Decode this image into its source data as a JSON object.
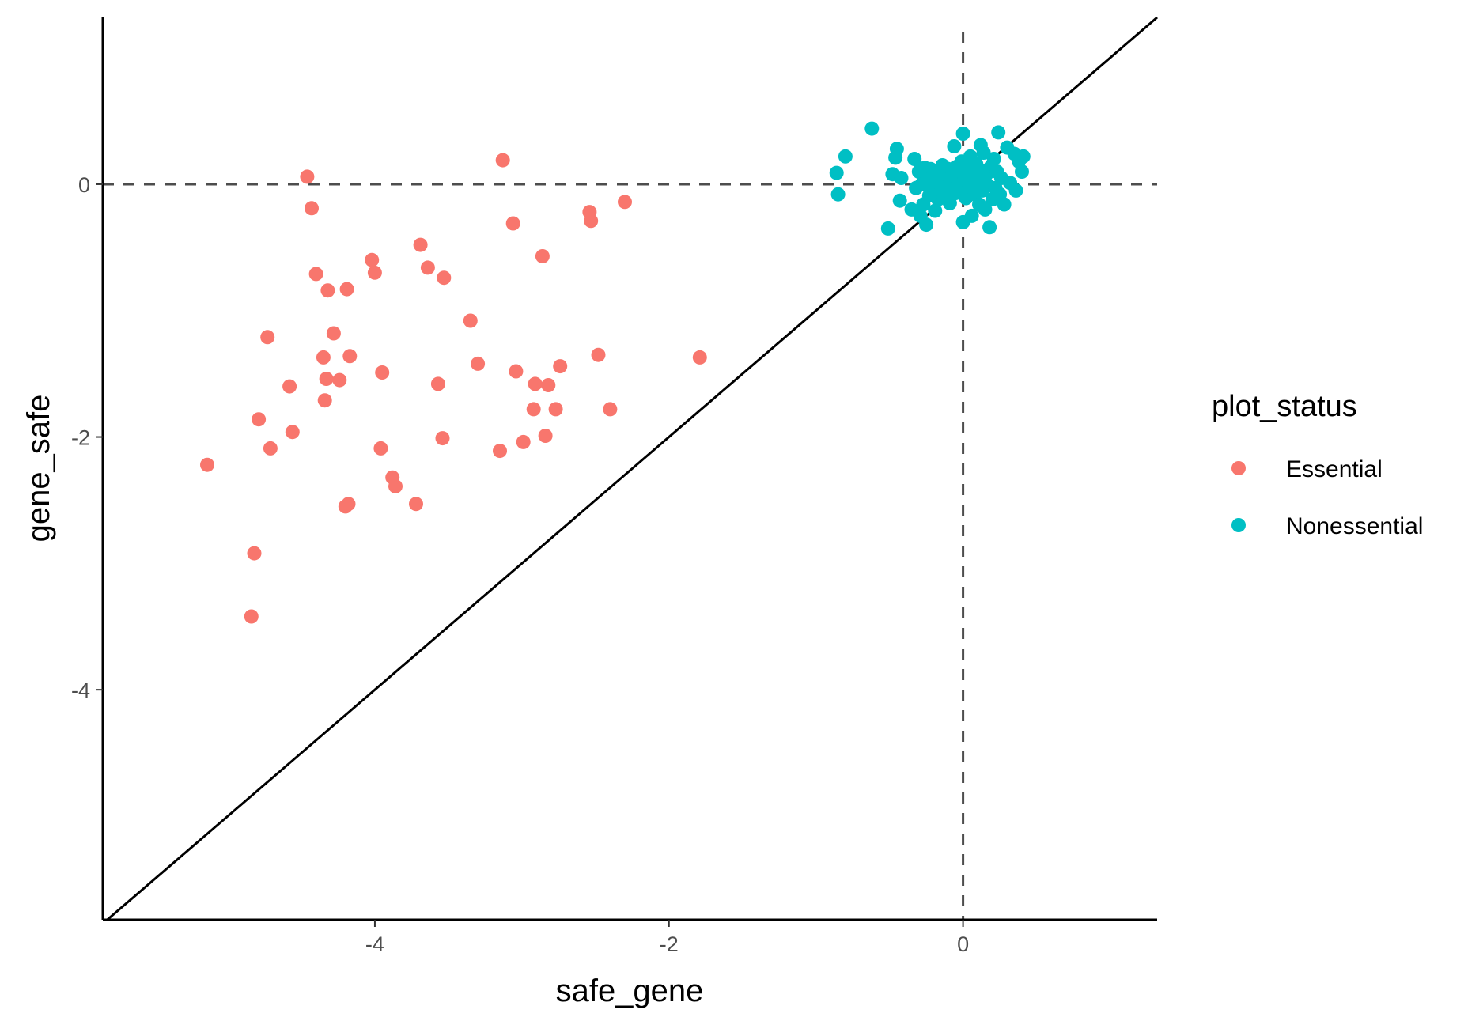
{
  "chart_data": {
    "type": "scatter",
    "title": "",
    "xlabel": "safe_gene",
    "ylabel": "gene_safe",
    "xlim": [
      -5.85,
      1.32
    ],
    "ylim": [
      -5.82,
      1.32
    ],
    "x_ticks": [
      -4,
      -2,
      0
    ],
    "y_ticks": [
      -4,
      -2,
      0
    ],
    "x_tick_labels": [
      "-4",
      "-2",
      "0"
    ],
    "y_tick_labels": [
      "-4",
      "-2",
      "0"
    ],
    "grid": false,
    "reference_lines": [
      {
        "kind": "horizontal",
        "value": 0,
        "style": "dashed"
      },
      {
        "kind": "vertical",
        "value": 0,
        "style": "dashed"
      },
      {
        "kind": "identity",
        "slope": 1,
        "intercept": 0,
        "style": "solid"
      }
    ],
    "legend": {
      "title": "plot_status",
      "position": "right",
      "entries": [
        "Essential",
        "Nonessential"
      ]
    },
    "colors": {
      "Essential": "#F8766D",
      "Nonessential": "#00BFC4",
      "axis": "#000000",
      "dashed": "#4d4d4d"
    },
    "series": [
      {
        "name": "Essential",
        "points": [
          [
            -5.14,
            -2.22
          ],
          [
            -4.84,
            -3.42
          ],
          [
            -4.82,
            -2.92
          ],
          [
            -4.79,
            -1.86
          ],
          [
            -4.73,
            -1.21
          ],
          [
            -4.71,
            -2.09
          ],
          [
            -4.58,
            -1.6
          ],
          [
            -4.56,
            -1.96
          ],
          [
            -4.46,
            0.06
          ],
          [
            -4.43,
            -0.19
          ],
          [
            -4.4,
            -0.71
          ],
          [
            -4.35,
            -1.37
          ],
          [
            -4.34,
            -1.71
          ],
          [
            -4.33,
            -1.54
          ],
          [
            -4.32,
            -0.84
          ],
          [
            -4.28,
            -1.18
          ],
          [
            -4.24,
            -1.55
          ],
          [
            -4.2,
            -2.55
          ],
          [
            -4.19,
            -0.83
          ],
          [
            -4.18,
            -2.53
          ],
          [
            -4.17,
            -1.36
          ],
          [
            -4.02,
            -0.6
          ],
          [
            -4.0,
            -0.7
          ],
          [
            -3.96,
            -2.09
          ],
          [
            -3.95,
            -1.49
          ],
          [
            -3.88,
            -2.32
          ],
          [
            -3.86,
            -2.39
          ],
          [
            -3.72,
            -2.53
          ],
          [
            -3.69,
            -0.48
          ],
          [
            -3.64,
            -0.66
          ],
          [
            -3.57,
            -1.58
          ],
          [
            -3.54,
            -2.01
          ],
          [
            -3.53,
            -0.74
          ],
          [
            -3.35,
            -1.08
          ],
          [
            -3.3,
            -1.42
          ],
          [
            -3.15,
            -2.11
          ],
          [
            -3.13,
            0.19
          ],
          [
            -3.06,
            -0.31
          ],
          [
            -3.04,
            -1.48
          ],
          [
            -2.99,
            -2.04
          ],
          [
            -2.92,
            -1.78
          ],
          [
            -2.91,
            -1.58
          ],
          [
            -2.86,
            -0.57
          ],
          [
            -2.84,
            -1.99
          ],
          [
            -2.82,
            -1.59
          ],
          [
            -2.77,
            -1.78
          ],
          [
            -2.74,
            -1.44
          ],
          [
            -2.54,
            -0.22
          ],
          [
            -2.53,
            -0.29
          ],
          [
            -2.48,
            -1.35
          ],
          [
            -2.4,
            -1.78
          ],
          [
            -2.3,
            -0.14
          ],
          [
            -1.79,
            -1.37
          ]
        ]
      },
      {
        "name": "Nonessential",
        "points": [
          [
            -0.86,
            0.09
          ],
          [
            -0.85,
            -0.08
          ],
          [
            -0.8,
            0.22
          ],
          [
            -0.62,
            0.44
          ],
          [
            -0.51,
            -0.35
          ],
          [
            -0.48,
            0.08
          ],
          [
            -0.46,
            0.21
          ],
          [
            -0.45,
            0.28
          ],
          [
            -0.43,
            -0.13
          ],
          [
            -0.33,
            0.2
          ],
          [
            -0.32,
            -0.03
          ],
          [
            -0.3,
            0.1
          ],
          [
            -0.29,
            -0.25
          ],
          [
            -0.28,
            0.0
          ],
          [
            -0.27,
            -0.16
          ],
          [
            -0.26,
            0.13
          ],
          [
            -0.25,
            -0.32
          ],
          [
            -0.24,
            0.05
          ],
          [
            -0.23,
            -0.09
          ],
          [
            -0.22,
            0.12
          ],
          [
            -0.21,
            -0.04
          ],
          [
            -0.2,
            0.08
          ],
          [
            -0.19,
            -0.21
          ],
          [
            -0.18,
            0.02
          ],
          [
            -0.17,
            -0.12
          ],
          [
            -0.16,
            0.1
          ],
          [
            -0.15,
            -0.06
          ],
          [
            -0.14,
            0.15
          ],
          [
            -0.13,
            -0.1
          ],
          [
            -0.12,
            0.07
          ],
          [
            -0.11,
            -0.02
          ],
          [
            -0.1,
            0.12
          ],
          [
            -0.09,
            -0.15
          ],
          [
            -0.08,
            0.04
          ],
          [
            -0.07,
            0.09
          ],
          [
            -0.06,
            0.3
          ],
          [
            -0.05,
            -0.07
          ],
          [
            -0.04,
            0.14
          ],
          [
            -0.03,
            0.01
          ],
          [
            -0.02,
            -0.04
          ],
          [
            -0.01,
            0.18
          ],
          [
            0.0,
            -0.3
          ],
          [
            0.0,
            0.4
          ],
          [
            0.01,
            0.05
          ],
          [
            0.02,
            -0.11
          ],
          [
            0.03,
            0.13
          ],
          [
            0.04,
            -0.02
          ],
          [
            0.05,
            0.22
          ],
          [
            0.06,
            -0.25
          ],
          [
            0.07,
            0.07
          ],
          [
            0.08,
            -0.08
          ],
          [
            0.09,
            0.16
          ],
          [
            0.1,
            0.03
          ],
          [
            0.11,
            -0.16
          ],
          [
            0.12,
            0.11
          ],
          [
            0.13,
            -0.05
          ],
          [
            0.14,
            0.25
          ],
          [
            0.15,
            -0.2
          ],
          [
            0.16,
            0.08
          ],
          [
            0.17,
            -0.01
          ],
          [
            0.18,
            -0.34
          ],
          [
            0.19,
            0.14
          ],
          [
            0.2,
            -0.12
          ],
          [
            0.21,
            0.2
          ],
          [
            0.22,
            -0.03
          ],
          [
            0.23,
            0.1
          ],
          [
            0.24,
            0.41
          ],
          [
            0.25,
            -0.08
          ],
          [
            0.26,
            0.05
          ],
          [
            0.28,
            -0.16
          ],
          [
            0.3,
            0.29
          ],
          [
            0.32,
            0.01
          ],
          [
            0.35,
            0.24
          ],
          [
            0.36,
            -0.05
          ],
          [
            0.38,
            0.18
          ],
          [
            0.4,
            0.1
          ],
          [
            0.41,
            0.22
          ],
          [
            -0.42,
            0.05
          ],
          [
            -0.35,
            -0.2
          ],
          [
            0.12,
            0.31
          ]
        ]
      }
    ]
  }
}
